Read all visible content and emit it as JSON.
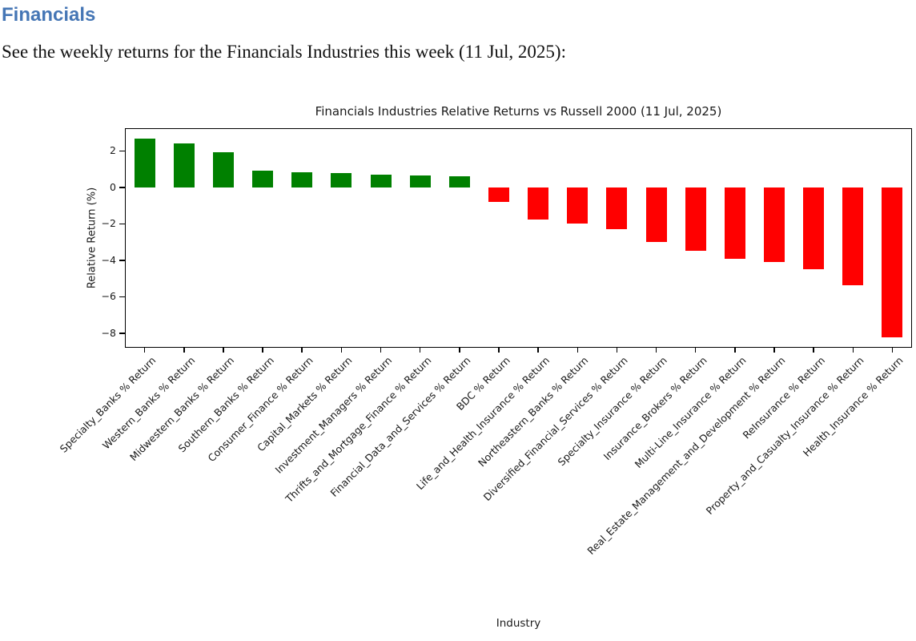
{
  "page": {
    "heading": "Financials",
    "intro": "See the weekly returns for the Financials Industries this week (11 Jul, 2025):"
  },
  "colors": {
    "heading_blue": "#4576b5",
    "positive_green": "#008000",
    "negative_red": "#ff0000"
  },
  "chart_data": {
    "type": "bar",
    "title": "Financials Industries Relative Returns vs Russell 2000 (11 Jul, 2025)",
    "xlabel": "Industry",
    "ylabel": "Relative Return (%)",
    "ylim": [
      -8.8,
      3.25
    ],
    "yticks": [
      2,
      0,
      -2,
      -4,
      -6,
      -8
    ],
    "ytick_labels": [
      "2",
      "0",
      "−2",
      "−4",
      "−6",
      "−8"
    ],
    "grid": false,
    "legend": "none",
    "bar_colors": {
      "positive": "#008000",
      "negative": "#ff0000"
    },
    "categories": [
      "Specialty_Banks % Return",
      "Western_Banks % Return",
      "Midwestern_Banks % Return",
      "Southern_Banks % Return",
      "Consumer_Finance % Return",
      "Capital_Markets % Return",
      "Investment_Managers % Return",
      "Thrifts_and_Mortgage_Finance % Return",
      "Financial_Data_and_Services % Return",
      "BDC % Return",
      "Life_and_Health_Insurance % Return",
      "Northeastern_Banks % Return",
      "Diversified_Financial_Services % Return",
      "Specialty_Insurance % Return",
      "Insurance_Brokers % Return",
      "Multi-Line_Insurance % Return",
      "Real_Estate_Management_and_Development % Return",
      "ReInsurance % Return",
      "Property_and_Casualty_Insurance % Return",
      "Health_Insurance % Return"
    ],
    "values": [
      2.7,
      2.4,
      1.95,
      0.9,
      0.85,
      0.8,
      0.7,
      0.65,
      0.6,
      -0.8,
      -1.75,
      -2.0,
      -2.3,
      -3.0,
      -3.5,
      -3.9,
      -4.1,
      -4.5,
      -5.35,
      -8.25
    ]
  }
}
